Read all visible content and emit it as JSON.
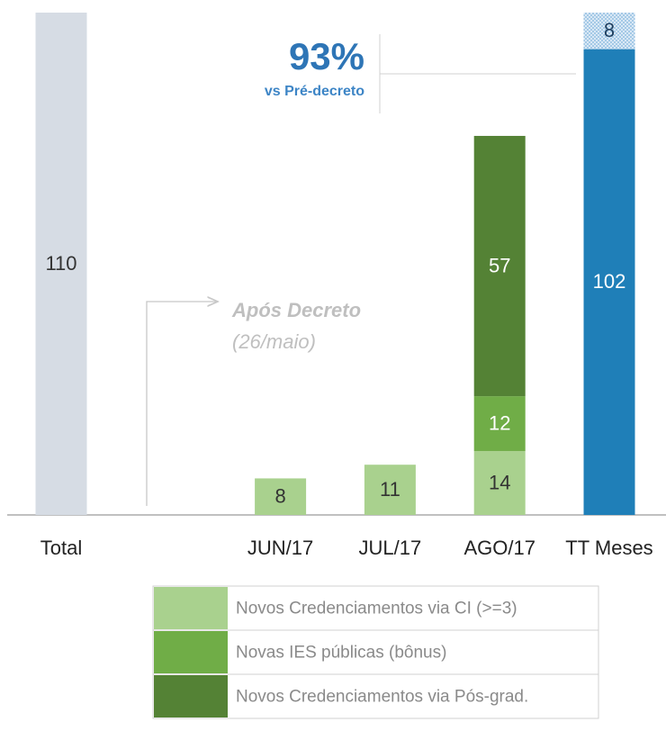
{
  "chart_data": {
    "type": "bar",
    "stacked": true,
    "categories": [
      "Total",
      null,
      "JUN/17",
      "JUL/17",
      "AGO/17",
      "TT Meses"
    ],
    "series": [
      {
        "color": "#d6dce4",
        "label_color": "#333333",
        "values": [
          110,
          null,
          null,
          null,
          null,
          null
        ]
      },
      {
        "name": "Novos Credenciamentos via CI (>=3)",
        "color": "#a9d18e",
        "label_color": "#333333",
        "values": [
          null,
          null,
          8,
          11,
          14,
          null
        ]
      },
      {
        "name": "Novas IES públicas (bônus)",
        "color": "#70ad47",
        "label_color": "#ffffff",
        "values": [
          null,
          null,
          null,
          null,
          12,
          null
        ]
      },
      {
        "name": "Novos Credenciamentos via Pós-grad.",
        "color": "#548235",
        "label_color": "#ffffff",
        "values": [
          null,
          null,
          null,
          null,
          57,
          null
        ]
      },
      {
        "color": "#1f7fb8",
        "label_color": "#ffffff",
        "values": [
          null,
          null,
          null,
          null,
          null,
          102
        ]
      },
      {
        "color": "#bdd7ee",
        "pattern": "dots",
        "label_color": "#1f3f5f",
        "values": [
          null,
          null,
          null,
          null,
          null,
          8
        ]
      }
    ],
    "ylim": [
      0,
      110
    ],
    "annotations": {
      "big": "93%",
      "sub": "vs Pré-decreto",
      "decree": "Após Decreto",
      "date": "(26/maio)"
    }
  }
}
